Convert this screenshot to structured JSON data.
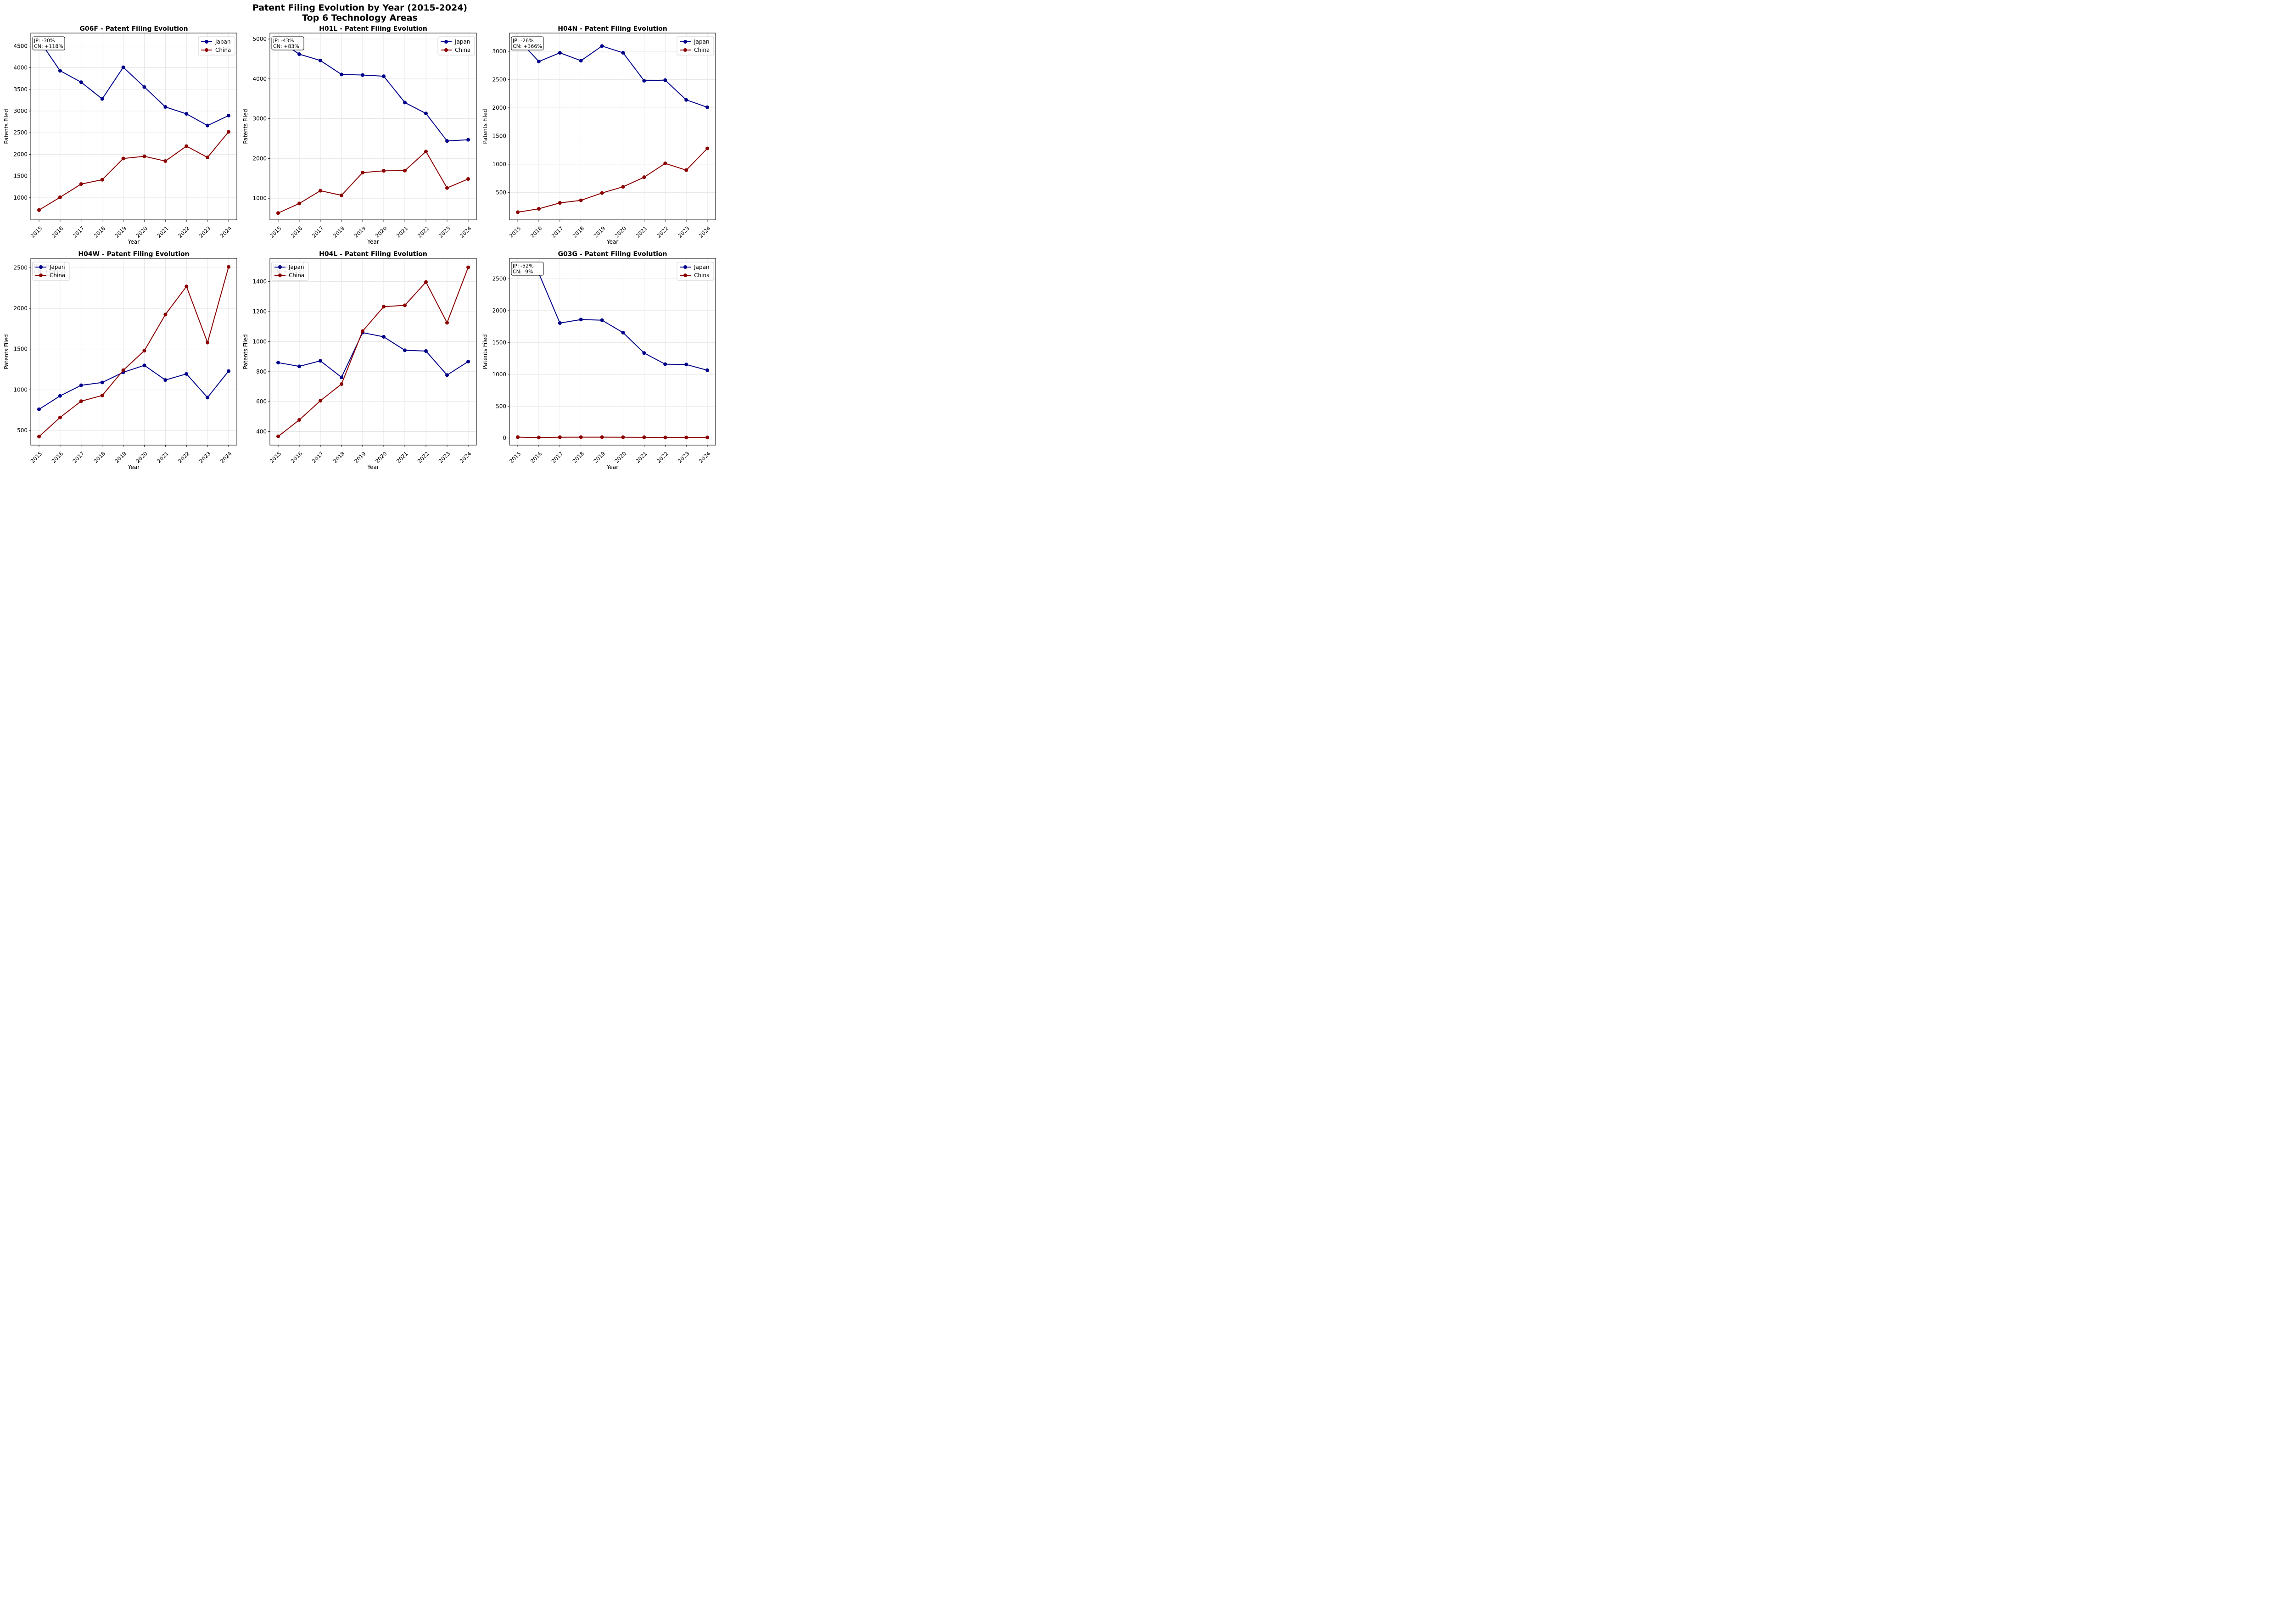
{
  "figure": {
    "title_line1": "Patent Filing Evolution by Year (2015-2024)",
    "title_line2": "Top 6 Technology Areas"
  },
  "colors": {
    "japan": "#00008b",
    "china": "#8b0000",
    "grid": "#e0e0e0"
  },
  "chart_data": [
    {
      "type": "line",
      "title": "G06F - Patent Filing Evolution",
      "xlabel": "Year",
      "ylabel": "Patents Filed",
      "categories": [
        "2015",
        "2016",
        "2017",
        "2018",
        "2019",
        "2020",
        "2021",
        "2022",
        "2023",
        "2024"
      ],
      "ylim": [
        490,
        4800
      ],
      "yticks": [
        1000,
        1500,
        2000,
        2500,
        3000,
        3500,
        4000,
        4500
      ],
      "grid": true,
      "legend_position": "upper right",
      "annotation": [
        "JP: -30%",
        "CN: +118%"
      ],
      "series": [
        {
          "name": "Japan",
          "values": [
            4640,
            3930,
            3665,
            3280,
            4010,
            3555,
            3095,
            2935,
            2665,
            2895
          ]
        },
        {
          "name": "China",
          "values": [
            715,
            1010,
            1315,
            1415,
            1905,
            1955,
            1845,
            2190,
            1930,
            2520
          ]
        }
      ]
    },
    {
      "type": "line",
      "title": "H01L - Patent Filing Evolution",
      "xlabel": "Year",
      "ylabel": "Patents Filed",
      "categories": [
        "2015",
        "2016",
        "2017",
        "2018",
        "2019",
        "2020",
        "2021",
        "2022",
        "2023",
        "2024"
      ],
      "ylim": [
        460,
        5150
      ],
      "yticks": [
        1000,
        2000,
        3000,
        4000,
        5000
      ],
      "grid": true,
      "legend_position": "upper right",
      "annotation": [
        "JP: -43%",
        "CN: +83%"
      ],
      "series": [
        {
          "name": "Japan",
          "values": [
            4970,
            4620,
            4460,
            4110,
            4095,
            4065,
            3405,
            3130,
            2440,
            2470
          ]
        },
        {
          "name": "China",
          "values": [
            630,
            870,
            1190,
            1075,
            1645,
            1690,
            1695,
            2175,
            1260,
            1485
          ]
        }
      ]
    },
    {
      "type": "line",
      "title": "H04N - Patent Filing Evolution",
      "xlabel": "Year",
      "ylabel": "Patents Filed",
      "categories": [
        "2015",
        "2016",
        "2017",
        "2018",
        "2019",
        "2020",
        "2021",
        "2022",
        "2023",
        "2024"
      ],
      "ylim": [
        15,
        3325
      ],
      "yticks": [
        500,
        1000,
        1500,
        2000,
        2500,
        3000
      ],
      "grid": true,
      "legend_position": "upper right",
      "annotation": [
        "JP: -26%",
        "CN: +366%"
      ],
      "series": [
        {
          "name": "Japan",
          "values": [
            3225,
            2820,
            2975,
            2835,
            3095,
            2975,
            2480,
            2490,
            2140,
            2010
          ]
        },
        {
          "name": "China",
          "values": [
            150,
            210,
            315,
            360,
            490,
            600,
            770,
            1015,
            895,
            1280
          ]
        }
      ]
    },
    {
      "type": "line",
      "title": "H04W - Patent Filing Evolution",
      "xlabel": "Year",
      "ylabel": "Patents Filed",
      "categories": [
        "2015",
        "2016",
        "2017",
        "2018",
        "2019",
        "2020",
        "2021",
        "2022",
        "2023",
        "2024"
      ],
      "ylim": [
        320,
        2615
      ],
      "yticks": [
        500,
        1000,
        1500,
        2000,
        2500
      ],
      "grid": true,
      "legend_position": "upper left",
      "annotation": [
        "JP: +62%",
        "CN: +489%"
      ],
      "series": [
        {
          "name": "Japan",
          "values": [
            760,
            925,
            1055,
            1090,
            1215,
            1300,
            1120,
            1195,
            905,
            1230
          ]
        },
        {
          "name": "China",
          "values": [
            425,
            660,
            860,
            930,
            1240,
            1480,
            1925,
            2270,
            1580,
            2510
          ]
        }
      ]
    },
    {
      "type": "line",
      "title": "H04L - Patent Filing Evolution",
      "xlabel": "Year",
      "ylabel": "Patents Filed",
      "categories": [
        "2015",
        "2016",
        "2017",
        "2018",
        "2019",
        "2020",
        "2021",
        "2022",
        "2023",
        "2024"
      ],
      "ylim": [
        310,
        1555
      ],
      "yticks": [
        400,
        600,
        800,
        1000,
        1200,
        1400
      ],
      "grid": true,
      "legend_position": "upper left",
      "annotation": [
        "JP: +1%",
        "CN: +310%"
      ],
      "series": [
        {
          "name": "Japan",
          "values": [
            860,
            835,
            872,
            762,
            1060,
            1032,
            942,
            937,
            777,
            867
          ]
        },
        {
          "name": "China",
          "values": [
            368,
            478,
            606,
            717,
            1070,
            1233,
            1242,
            1397,
            1126,
            1495
          ]
        }
      ]
    },
    {
      "type": "line",
      "title": "G03G - Patent Filing Evolution",
      "xlabel": "Year",
      "ylabel": "Patents Filed",
      "categories": [
        "2015",
        "2016",
        "2017",
        "2018",
        "2019",
        "2020",
        "2021",
        "2022",
        "2023",
        "2024"
      ],
      "ylim": [
        -110,
        2820
      ],
      "yticks": [
        0,
        500,
        1000,
        1500,
        2000,
        2500
      ],
      "grid": true,
      "legend_position": "upper right",
      "annotation": [
        "JP: -52%",
        "CN: -9%"
      ],
      "series": [
        {
          "name": "Japan",
          "values": [
            2700,
            2585,
            1805,
            1860,
            1850,
            1655,
            1335,
            1160,
            1155,
            1065
          ]
        },
        {
          "name": "China",
          "values": [
            15,
            10,
            14,
            15,
            15,
            14,
            13,
            10,
            10,
            11
          ]
        }
      ]
    }
  ]
}
